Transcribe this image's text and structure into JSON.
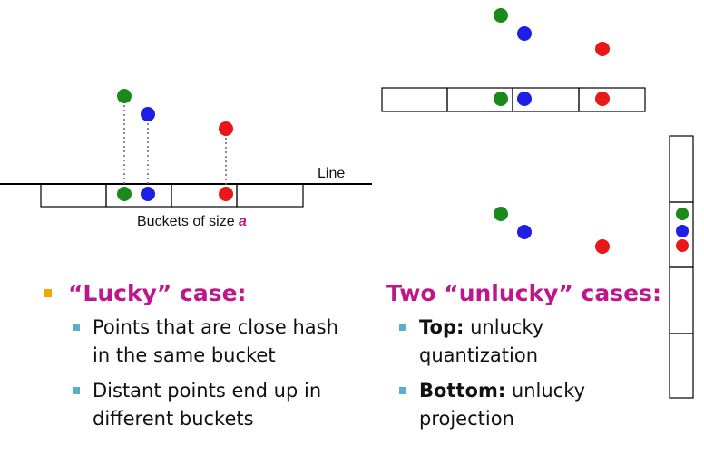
{
  "labels": {
    "line": "Line",
    "buckets_prefix": "Buckets of size ",
    "buckets_var": "a"
  },
  "left": {
    "heading": "“Lucky” case:",
    "items": [
      "Points that are close hash in the same bucket",
      "Distant points end up in different buckets"
    ]
  },
  "right": {
    "heading": "Two “unlucky” cases:",
    "items": [
      {
        "bold": "Top:",
        "text": " unlucky quantization"
      },
      {
        "bold": "Bottom:",
        "text": " unlucky projection"
      }
    ]
  },
  "colors": {
    "green": "#1a8a1a",
    "blue": "#1e1ee6",
    "red": "#e81818",
    "heading": "#c0168c",
    "bullet_main": "#f0a800",
    "bullet_sub": "#5aafc9"
  }
}
